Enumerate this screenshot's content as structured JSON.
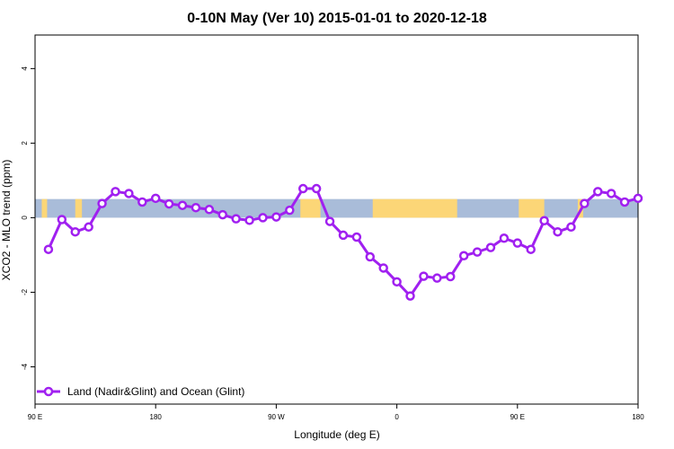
{
  "chart_data": {
    "type": "line",
    "title": "0-10N May (Ver 10)   2015-01-01 to 2020-12-18",
    "xlabel": "Longitude (deg E)",
    "ylabel": "XCO2 - MLO trend (ppm)",
    "xlim": [
      -1,
      44
    ],
    "ylim": [
      -5,
      4.9
    ],
    "x_ticks": [
      {
        "pos": -1,
        "label": "90 E"
      },
      {
        "pos": 8,
        "label": "180"
      },
      {
        "pos": 17,
        "label": "90 W"
      },
      {
        "pos": 26,
        "label": "0"
      },
      {
        "pos": 35,
        "label": "90 E"
      },
      {
        "pos": 44,
        "label": "180"
      }
    ],
    "y_ticks": [
      -4,
      -2,
      0,
      2,
      4
    ],
    "band": {
      "ymin": 0,
      "ymax": 0.5,
      "ocean_color": "#a9bcd9",
      "land_color": "#fcd677"
    },
    "land_segments": [
      [
        -0.5,
        -0.1
      ],
      [
        2.0,
        2.5
      ],
      [
        18.8,
        20.3
      ],
      [
        24.2,
        30.5
      ],
      [
        35.1,
        37.0
      ],
      [
        39.5,
        39.9
      ]
    ],
    "series": [
      {
        "name": "Land (Nadir&Glint) and Ocean (Glint)",
        "color": "#a020f0",
        "values": [
          -0.85,
          -0.05,
          -0.38,
          -0.25,
          0.38,
          0.7,
          0.65,
          0.42,
          0.52,
          0.37,
          0.33,
          0.27,
          0.22,
          0.08,
          -0.03,
          -0.07,
          0.0,
          0.02,
          0.2,
          0.78,
          0.78,
          -0.1,
          -0.47,
          -0.52,
          -1.05,
          -1.35,
          -1.72,
          -2.1,
          -1.57,
          -1.62,
          -1.58,
          -1.02,
          -0.92,
          -0.8,
          -0.55,
          -0.68,
          -0.85,
          -0.08,
          -0.38,
          -0.25,
          0.38,
          0.7,
          0.65,
          0.42,
          0.52
        ]
      }
    ],
    "legend_position": "bottom-left"
  }
}
